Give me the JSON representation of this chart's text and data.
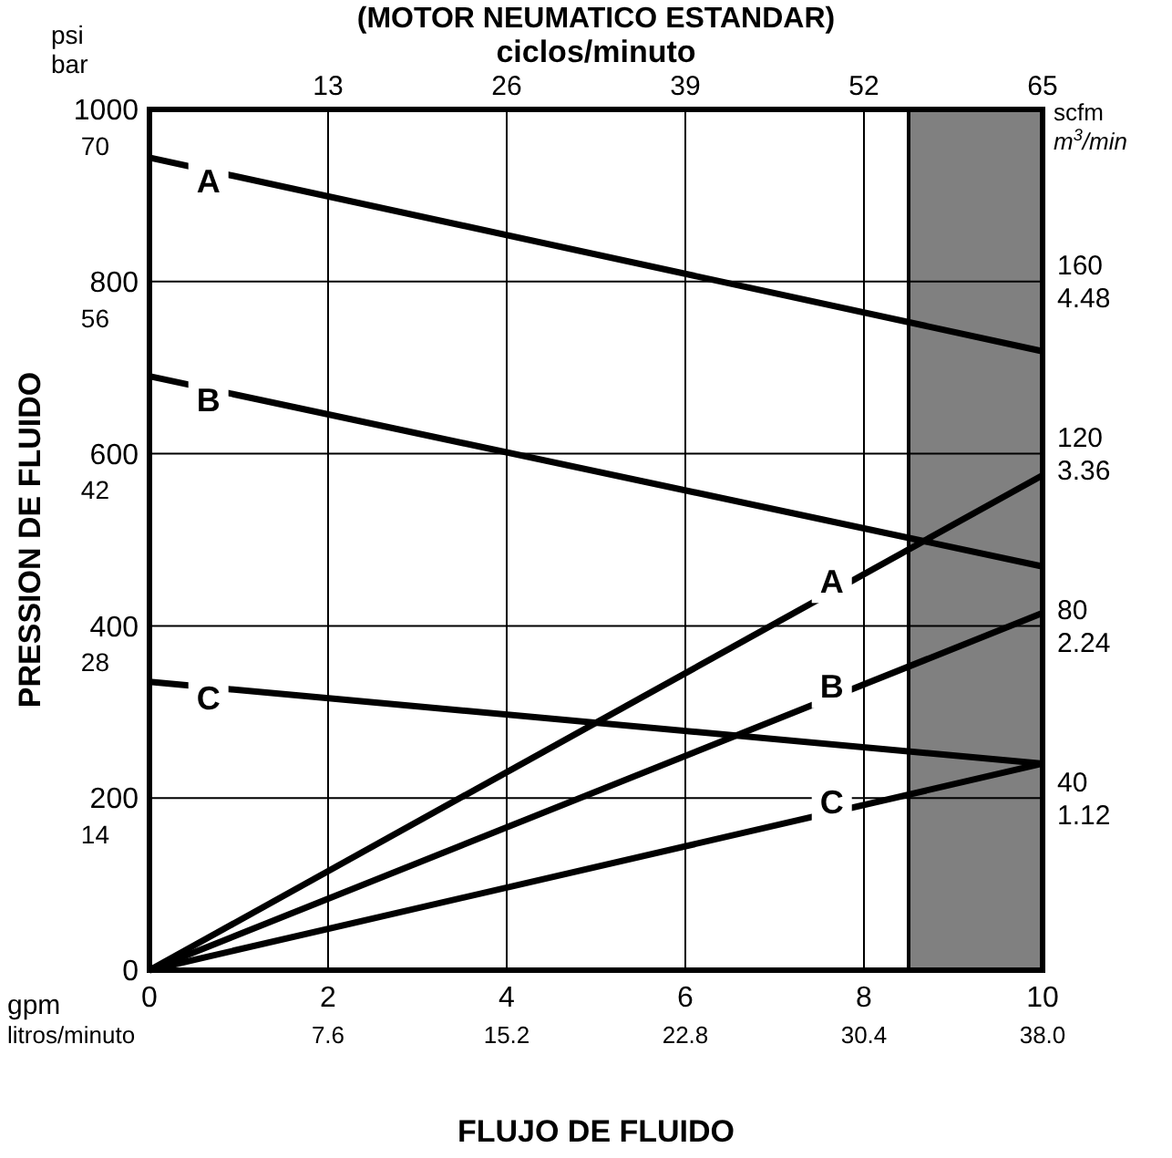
{
  "chart_data": {
    "type": "line",
    "title": "(MOTOR NEUMATICO ESTANDAR)",
    "xlabel": "FLUJO DE FLUIDO",
    "ylabel": "PRESSION DE FLUIDO",
    "x2label": "ciclos/minuto",
    "xlim": [
      0,
      10
    ],
    "xticks": [
      0,
      2,
      4,
      6,
      8,
      10
    ],
    "x2lim": [
      0,
      65
    ],
    "x2ticks": [
      13,
      26,
      39,
      52,
      65
    ],
    "ylim": [
      0,
      1000
    ],
    "yticks": [
      0,
      200,
      400,
      600,
      800,
      1000
    ],
    "y2lim": [
      0,
      200
    ],
    "y2ticks": [
      40,
      80,
      120,
      160
    ],
    "y3lim": [
      0,
      5.6
    ],
    "y3ticks": [
      1.12,
      2.24,
      3.36,
      4.48
    ],
    "grid": true,
    "line_style": "solid",
    "marker": "none",
    "x": [
      0,
      10
    ],
    "series": [
      {
        "name": "A",
        "color": "#000000",
        "values": [
          944,
          719
        ]
      },
      {
        "name": "B",
        "color": "#000000",
        "values": [
          690,
          469
        ]
      },
      {
        "name": "C",
        "color": "#000000",
        "values": [
          335,
          240
        ]
      },
      {
        "name": "A",
        "color": "#000000",
        "axis": "y2",
        "values": [
          0,
          115
        ]
      },
      {
        "name": "B",
        "color": "#000000",
        "axis": "y2",
        "values": [
          0,
          83
        ]
      },
      {
        "name": "C",
        "color": "#000000",
        "axis": "y2",
        "values": [
          0,
          48
        ]
      }
    ],
    "bands": [
      {
        "axis": "x",
        "from": 8.5,
        "to": 10,
        "color": "#808080"
      }
    ],
    "annotations": [
      "psi",
      "bar",
      "gpm",
      "litros/minuto",
      "scfm",
      "m$^{3}$/min",
      "7.6",
      "15.2",
      "22.8",
      "30.4",
      "38.0",
      "14",
      "28",
      "42",
      "56",
      "70"
    ]
  }
}
